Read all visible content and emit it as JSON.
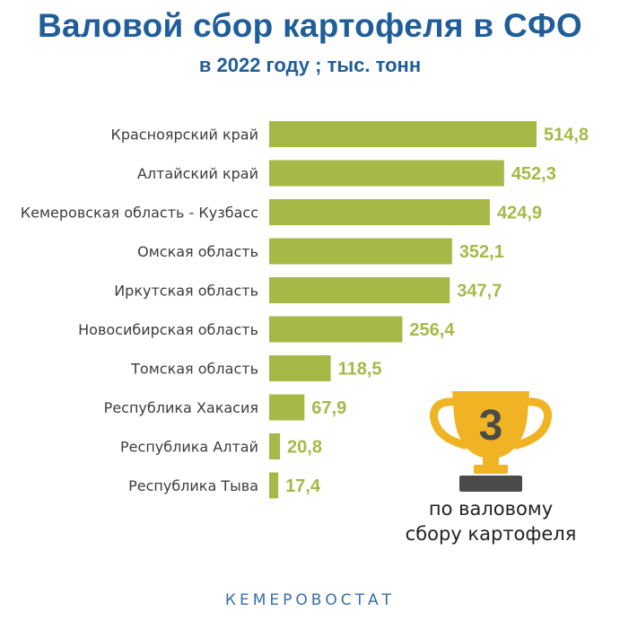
{
  "header": {
    "title": "Валовой сбор картофеля в СФО",
    "subtitle": "в 2022 году ; тыс. тонн"
  },
  "chart_data": {
    "type": "bar",
    "orientation": "horizontal",
    "title": "Валовой сбор картофеля в СФО",
    "subtitle": "в 2022 году ; тыс. тонн",
    "categories": [
      "Красноярский край",
      "Алтайский край",
      "Кемеровская область - Кузбасс",
      "Омская область",
      "Иркутская область",
      "Новосибирская область",
      "Томская область",
      "Республика Хакасия",
      "Республика Алтай",
      "Республика Тыва"
    ],
    "values": [
      514.8,
      452.3,
      424.9,
      352.1,
      347.7,
      256.4,
      118.5,
      67.9,
      20.8,
      17.4
    ],
    "value_labels": [
      "514,8",
      "452,3",
      "424,9",
      "352,1",
      "347,7",
      "256,4",
      "118,5",
      "67,9",
      "20,8",
      "17,4"
    ],
    "xlim": [
      0,
      514.8
    ],
    "grid": false,
    "legend": "none",
    "bar_color": "#a6b947",
    "label_color": "#a6b947"
  },
  "badge": {
    "rank": "3",
    "caption_line1": "по валовому",
    "caption_line2": "сбору картофеля"
  },
  "footer": {
    "source": "КЕМЕРОВОСТАТ"
  },
  "colors": {
    "title": "#1f5e99",
    "trophy": "#f0b323",
    "trophy_base": "#4a4a4a",
    "footer": "#3a6fa8"
  }
}
